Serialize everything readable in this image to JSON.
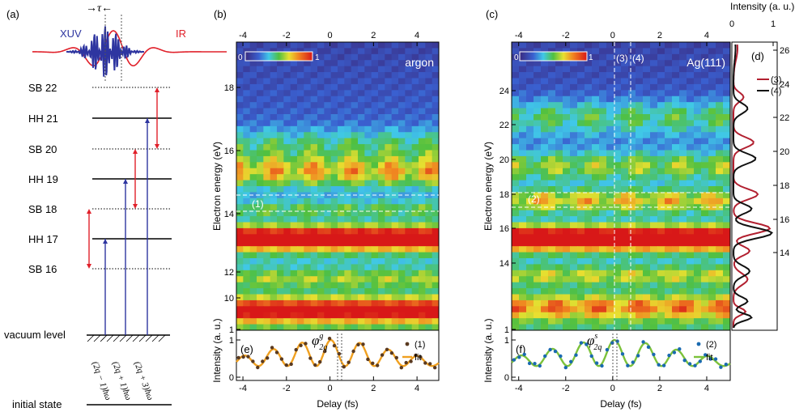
{
  "colors": {
    "xuv": "#2e35a0",
    "ir": "#e0202a",
    "fit_e": "#f0a020",
    "fit_f": "#7cc23a",
    "curve3": "#b22030",
    "curve4": "#111111"
  },
  "panel_a": {
    "label": "(a)",
    "xuv": "XUV",
    "ir": "IR",
    "tau": "→τ←",
    "levels": [
      {
        "name": "SB 22",
        "style": "dotted"
      },
      {
        "name": "HH 21",
        "style": "solid"
      },
      {
        "name": "SB 20",
        "style": "dotted"
      },
      {
        "name": "HH 19",
        "style": "solid"
      },
      {
        "name": "SB 18",
        "style": "dotted"
      },
      {
        "name": "HH 17",
        "style": "solid"
      },
      {
        "name": "SB 16",
        "style": "dotted"
      }
    ],
    "vacuum": "vacuum level",
    "initial": "initial state",
    "transitions": [
      "(2q − 1)ħω",
      "(2q + 1)ħω",
      "(2q + 3)ħω"
    ]
  },
  "panel_b": {
    "label": "(b)",
    "name": "argon",
    "ylabel": "Electron energy (eV)",
    "yticks": [
      "18",
      "16",
      "14",
      "12",
      "10",
      "1"
    ],
    "xticks": [
      "-4",
      "-2",
      "0",
      "2",
      "4"
    ],
    "colorbar": {
      "min": "0",
      "max": "1"
    },
    "marker": "(1)"
  },
  "panel_c": {
    "label": "(c)",
    "name": "Ag(111)",
    "ylabel": "Electron energy (eV)",
    "yticks": [
      "24",
      "22",
      "20",
      "18",
      "16",
      "14",
      "1"
    ],
    "xticks": [
      "-4",
      "-2",
      "0",
      "2",
      "4"
    ],
    "colorbar": {
      "min": "0",
      "max": "1"
    },
    "marker": "(2)",
    "cuts": [
      "(3)",
      "(4)"
    ]
  },
  "panel_d": {
    "label": "(d)",
    "xlabel": "Intensity (a. u.)",
    "xticks": [
      "0",
      "1"
    ],
    "yticks": [
      "26",
      "24",
      "22",
      "20",
      "18",
      "16",
      "14"
    ],
    "legend": [
      "(3)",
      "(4)"
    ]
  },
  "panel_e": {
    "label": "(e)",
    "ylabel": "Intensity (a. u.)",
    "xlabel": "Delay (fs)",
    "xticks": [
      "-4",
      "-2",
      "0",
      "2",
      "4"
    ],
    "yticks": [
      "0",
      "1"
    ],
    "phi": "φ",
    "phi_sup": "g",
    "phi_sub": "2q",
    "legend": [
      "(1)",
      "fit"
    ]
  },
  "panel_f": {
    "label": "(f)",
    "ylabel": "Intensity (a. u.)",
    "xlabel": "Delay (fs)",
    "xticks": [
      "-4",
      "-2",
      "0",
      "2",
      "4"
    ],
    "yticks": [
      "0",
      "1"
    ],
    "phi": "φ",
    "phi_sup": "s",
    "phi_sub": "2q",
    "legend": [
      "(2)",
      "fit"
    ]
  }
}
